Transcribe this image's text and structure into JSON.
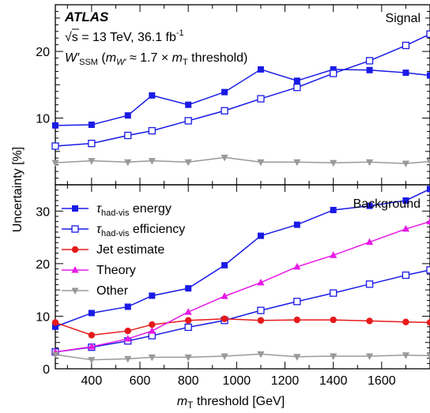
{
  "chart_data": [
    {
      "type": "line",
      "panel": "Signal",
      "panel_label": "Signal",
      "atlas_label": "ATLAS",
      "energy_label": "√s = 13 TeV, 36.1 fb",
      "energy_label_sup": "-1",
      "model_label": {
        "w": "W′",
        "ssm": "SSM",
        "paren_open": " (",
        "m": "m",
        "mw": "W′",
        "approx": " ≈ 1.7 × ",
        "m2": "m",
        "t": "T",
        "rest": " threshold)"
      },
      "x": [
        250,
        400,
        550,
        650,
        800,
        950,
        1100,
        1250,
        1400,
        1550,
        1700,
        1800
      ],
      "xlim": [
        250,
        1800
      ],
      "ylim": [
        0,
        27
      ],
      "yticks": [
        10,
        20
      ],
      "series": [
        {
          "name": "τhad-vis energy",
          "color": "#1a1ae6",
          "marker": "square-filled",
          "values": [
            8.9,
            9.0,
            10.4,
            13.4,
            12.0,
            13.9,
            17.3,
            15.6,
            17.3,
            17.2,
            16.8,
            16.4
          ]
        },
        {
          "name": "τhad-vis efficiency",
          "color": "#1a1ae6",
          "marker": "square-open",
          "values": [
            5.8,
            6.2,
            7.4,
            8.1,
            9.6,
            11.1,
            12.9,
            14.6,
            16.7,
            18.6,
            20.9,
            22.6
          ]
        },
        {
          "name": "Other",
          "color": "#999999",
          "marker": "triangle-down",
          "values": [
            3.3,
            3.6,
            3.4,
            3.6,
            3.4,
            4.1,
            3.4,
            3.4,
            3.3,
            3.4,
            3.2,
            3.5
          ]
        }
      ]
    },
    {
      "type": "line",
      "panel": "Background",
      "panel_label": "Background",
      "x": [
        250,
        400,
        550,
        650,
        800,
        950,
        1100,
        1250,
        1400,
        1550,
        1700,
        1800
      ],
      "xlim": [
        250,
        1800
      ],
      "ylim": [
        0,
        35
      ],
      "yticks": [
        0,
        10,
        20,
        30
      ],
      "xticks": [
        400,
        600,
        800,
        1000,
        1200,
        1400,
        1600
      ],
      "xlabel": {
        "m": "m",
        "t": "T",
        "rest": " threshold [GeV]"
      },
      "ylabel": "Uncertainty [%]",
      "series": [
        {
          "name": "τhad-vis energy",
          "color": "#1a1ae6",
          "marker": "square-filled",
          "values": [
            8.0,
            10.6,
            11.8,
            13.9,
            15.3,
            19.7,
            25.3,
            27.4,
            30.2,
            31.0,
            32.0,
            34.2
          ]
        },
        {
          "name": "τhad-vis efficiency",
          "color": "#1a1ae6",
          "marker": "square-open",
          "values": [
            3.2,
            4.1,
            5.3,
            6.3,
            7.9,
            9.2,
            11.1,
            12.8,
            14.4,
            16.1,
            17.8,
            18.8
          ]
        },
        {
          "name": "Jet estimate",
          "color": "#e61a1a",
          "marker": "circle-filled",
          "values": [
            8.8,
            6.4,
            7.2,
            8.4,
            9.2,
            9.5,
            9.2,
            9.3,
            9.3,
            9.1,
            8.9,
            8.8
          ]
        },
        {
          "name": "Theory",
          "color": "#e61ae6",
          "marker": "triangle-up",
          "values": [
            3.2,
            4.2,
            5.7,
            7.2,
            10.8,
            13.8,
            16.4,
            19.4,
            21.6,
            24.1,
            26.6,
            28.0
          ]
        },
        {
          "name": "Other",
          "color": "#999999",
          "marker": "triangle-down",
          "values": [
            2.7,
            1.7,
            1.9,
            2.2,
            2.2,
            2.4,
            2.8,
            2.3,
            2.4,
            2.4,
            2.6,
            2.5
          ]
        }
      ],
      "legend": {
        "placement": "top-left",
        "entries": [
          {
            "base": "τ",
            "sub": "had-vis",
            "rest": " energy"
          },
          {
            "base": "τ",
            "sub": "had-vis",
            "rest": " efficiency"
          },
          {
            "base": "Jet estimate",
            "sub": "",
            "rest": ""
          },
          {
            "base": "Theory",
            "sub": "",
            "rest": ""
          },
          {
            "base": "Other",
            "sub": "",
            "rest": ""
          }
        ]
      }
    }
  ]
}
